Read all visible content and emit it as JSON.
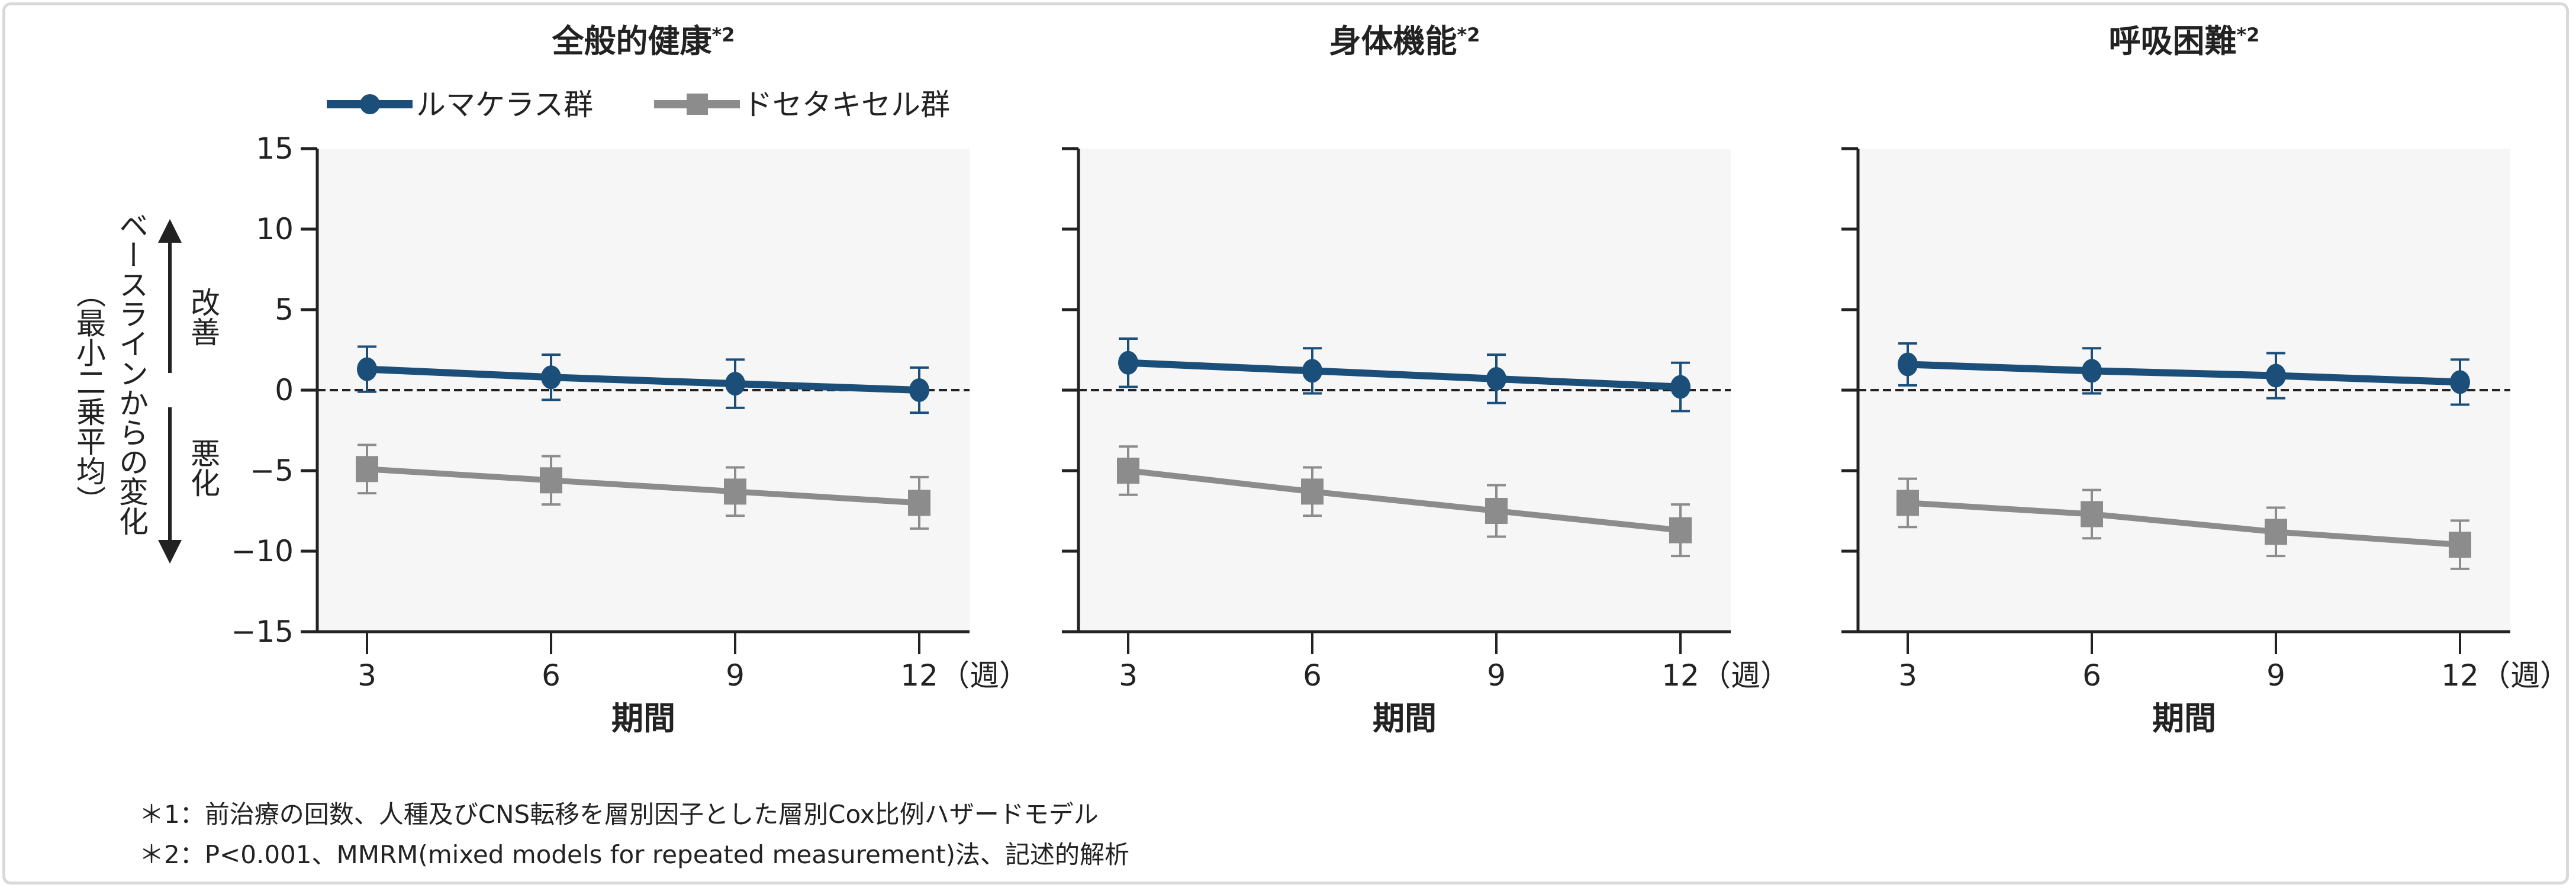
{
  "chart_data": [
    {
      "type": "line",
      "title": "全般的健康",
      "title_note": "*2",
      "xlabel": "期間",
      "x_unit": "（週）",
      "x": [
        3,
        6,
        9,
        12
      ],
      "ylim": [
        -15,
        15
      ],
      "yticks": [
        15,
        10,
        5,
        0,
        -5,
        -10,
        -15
      ],
      "reference_line": 0,
      "series": [
        {
          "name": "ルマケラス群",
          "values": [
            1.3,
            0.8,
            0.4,
            0.0
          ],
          "error": [
            1.4,
            1.4,
            1.5,
            1.4
          ]
        },
        {
          "name": "ドセタキセル群",
          "values": [
            -4.9,
            -5.6,
            -6.3,
            -7.0
          ],
          "error": [
            1.5,
            1.5,
            1.5,
            1.6
          ]
        }
      ]
    },
    {
      "type": "line",
      "title": "身体機能",
      "title_note": "*2",
      "xlabel": "期間",
      "x_unit": "（週）",
      "x": [
        3,
        6,
        9,
        12
      ],
      "ylim": [
        -15,
        15
      ],
      "yticks": [
        15,
        10,
        5,
        0,
        -5,
        -10,
        -15
      ],
      "reference_line": 0,
      "series": [
        {
          "name": "ルマケラス群",
          "values": [
            1.7,
            1.2,
            0.7,
            0.2
          ],
          "error": [
            1.5,
            1.4,
            1.5,
            1.5
          ]
        },
        {
          "name": "ドセタキセル群",
          "values": [
            -5.0,
            -6.3,
            -7.5,
            -8.7
          ],
          "error": [
            1.5,
            1.5,
            1.6,
            1.6
          ]
        }
      ]
    },
    {
      "type": "line",
      "title": "呼吸困難",
      "title_note": "*2",
      "xlabel": "期間",
      "x_unit": "（週）",
      "x": [
        3,
        6,
        9,
        12
      ],
      "ylim": [
        -15,
        15
      ],
      "yticks": [
        15,
        10,
        5,
        0,
        -5,
        -10,
        -15
      ],
      "reference_line": 0,
      "series": [
        {
          "name": "ルマケラス群",
          "values": [
            1.6,
            1.2,
            0.9,
            0.5
          ],
          "error": [
            1.3,
            1.4,
            1.4,
            1.4
          ]
        },
        {
          "name": "ドセタキセル群",
          "values": [
            -7.0,
            -7.7,
            -8.8,
            -9.6
          ],
          "error": [
            1.5,
            1.5,
            1.5,
            1.5
          ]
        }
      ]
    }
  ],
  "legend": {
    "placement": "top-left",
    "items": [
      {
        "label": "ルマケラス群",
        "color": "#1b4f7a",
        "marker": "circle"
      },
      {
        "label": "ドセタキセル群",
        "color": "#8c8c8c",
        "marker": "square"
      }
    ]
  },
  "ylabel": {
    "main": "ベースラインからの変化",
    "sub": "（最小二乗平均）",
    "improve": "改善",
    "worsen": "悪化"
  },
  "colors": {
    "plot_bg": "#f7f6f6",
    "reference": "#222222"
  },
  "footnotes": [
    "＊1：前治療の回数、人種及びCNS転移を層別因子とした層別Cox比例ハザードモデル",
    "＊2：P<0.001、MMRM(mixed models for repeated measurement)法、記述的解析"
  ]
}
